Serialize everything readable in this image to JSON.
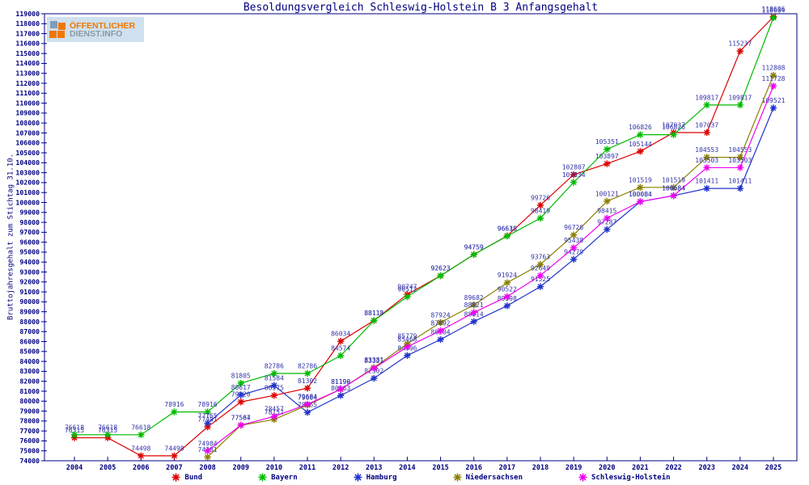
{
  "title": "Besoldungsvergleich Schleswig-Holstein B 3 Anfangsgehalt",
  "y_axis_label": "Bruttojahresgehalt zum Stichtag 31.10.",
  "logo": {
    "line1": "ÖFFENTLICHER",
    "line2": "DIENST.INFO"
  },
  "colors": {
    "axis": "#000080",
    "value_label": "#3333aa",
    "background": "#ffffff"
  },
  "chart_data": {
    "type": "line",
    "x": [
      2004,
      2005,
      2006,
      2007,
      2008,
      2009,
      2010,
      2011,
      2012,
      2013,
      2014,
      2015,
      2016,
      2017,
      2018,
      2019,
      2020,
      2021,
      2022,
      2023,
      2024,
      2025
    ],
    "ylim": [
      74000,
      119000
    ],
    "ytick_step": 1000,
    "grid": false,
    "legend_position": "bottom",
    "point_labels": true,
    "series": [
      {
        "name": "Bund",
        "color": "#dd0000",
        "values": [
          76315,
          76315,
          74498,
          74498,
          77401,
          79920,
          80575,
          81302,
          86034,
          88118,
          90747,
          92623,
          94759,
          96638,
          99726,
          102807,
          103897,
          105144,
          107037,
          107037,
          115237,
          118696
        ]
      },
      {
        "name": "Bayern",
        "color": "#00bb00",
        "values": [
          76618,
          76618,
          76618,
          78916,
          78916,
          81805,
          82786,
          82786,
          84574,
          88113,
          90512,
          92623,
          94759,
          96618,
          98419,
          102034,
          105351,
          106826,
          106826,
          109817,
          109817,
          118604
        ]
      },
      {
        "name": "Hamburg",
        "color": "#2233cc",
        "values": [
          null,
          null,
          null,
          null,
          77765,
          80617,
          81584,
          78865,
          80563,
          82302,
          84596,
          86204,
          88014,
          89598,
          91525,
          94279,
          97287,
          100084,
          100684,
          101411,
          101411,
          109521
        ]
      },
      {
        "name": "Niedersachsen",
        "color": "#8a8000",
        "values": [
          null,
          null,
          null,
          null,
          74381,
          77564,
          78152,
          79604,
          81190,
          83381,
          85779,
          87924,
          89682,
          91924,
          93763,
          96726,
          100121,
          101519,
          101519,
          104553,
          104553,
          112808
        ]
      },
      {
        "name": "Schleswig-Holstein",
        "color": "#ee00ee",
        "values": [
          null,
          null,
          null,
          null,
          74984,
          77587,
          78457,
          79684,
          81199,
          83321,
          85468,
          87092,
          88921,
          90522,
          92649,
          95438,
          98415,
          100084,
          100684,
          103503,
          103503,
          111728
        ]
      }
    ]
  }
}
